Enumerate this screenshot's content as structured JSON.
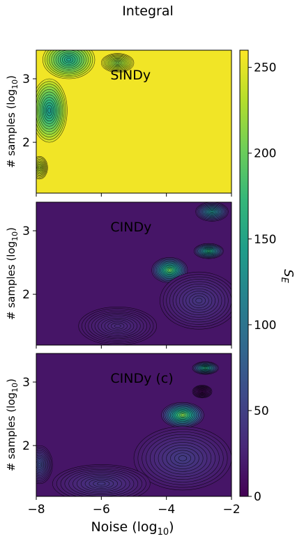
{
  "figure": {
    "suptitle": "Integral"
  },
  "chart_data": [
    {
      "type": "heatmap",
      "panel_label": "SINDy",
      "xlabel": "Noise (log10)",
      "ylabel": "# samples (log10)",
      "xlim": [
        -8,
        -2
      ],
      "ylim": [
        1.2,
        3.45
      ],
      "xticks": [
        -8,
        -6,
        -4,
        -2
      ],
      "yticks": [
        2,
        3
      ],
      "background_value": 255,
      "features": [
        {
          "x": -7.9,
          "y": 1.6,
          "value": 230,
          "sx": 0.25,
          "sy": 0.18
        },
        {
          "x": -7.6,
          "y": 2.5,
          "value": 140,
          "sx": 0.55,
          "sy": 0.5
        },
        {
          "x": -7.0,
          "y": 3.3,
          "value": 150,
          "sx": 0.8,
          "sy": 0.3
        },
        {
          "x": -5.5,
          "y": 3.25,
          "value": 210,
          "sx": 0.5,
          "sy": 0.15
        }
      ]
    },
    {
      "type": "heatmap",
      "panel_label": "CINDy",
      "xlabel": "Noise (log10)",
      "ylabel": "# samples (log10)",
      "xlim": [
        -8,
        -2
      ],
      "ylim": [
        1.2,
        3.45
      ],
      "xticks": [
        -8,
        -6,
        -4,
        -2
      ],
      "yticks": [
        2,
        3
      ],
      "background_value": 15,
      "features": [
        {
          "x": -3.9,
          "y": 2.38,
          "value": 200,
          "sx": 0.55,
          "sy": 0.2
        },
        {
          "x": -2.7,
          "y": 2.68,
          "value": 170,
          "sx": 0.45,
          "sy": 0.12
        },
        {
          "x": -2.6,
          "y": 3.3,
          "value": 130,
          "sx": 0.5,
          "sy": 0.15
        },
        {
          "x": -3.0,
          "y": 1.9,
          "value": 40,
          "sx": 1.2,
          "sy": 0.45
        },
        {
          "x": -5.5,
          "y": 1.5,
          "value": 30,
          "sx": 1.2,
          "sy": 0.3
        }
      ]
    },
    {
      "type": "heatmap",
      "panel_label": "CINDy (c)",
      "xlabel": "Noise (log10)",
      "ylabel": "# samples (log10)",
      "xlim": [
        -8,
        -2
      ],
      "ylim": [
        1.2,
        3.45
      ],
      "xticks": [
        -8,
        -6,
        -4,
        -2
      ],
      "yticks": [
        2,
        3
      ],
      "background_value": 15,
      "features": [
        {
          "x": -3.5,
          "y": 2.48,
          "value": 210,
          "sx": 0.65,
          "sy": 0.2
        },
        {
          "x": -2.8,
          "y": 3.22,
          "value": 170,
          "sx": 0.4,
          "sy": 0.1
        },
        {
          "x": -2.9,
          "y": 2.85,
          "value": 5,
          "sx": 0.3,
          "sy": 0.1
        },
        {
          "x": -7.9,
          "y": 1.7,
          "value": 60,
          "sx": 0.4,
          "sy": 0.3
        },
        {
          "x": -3.5,
          "y": 1.8,
          "value": 45,
          "sx": 1.5,
          "sy": 0.5
        },
        {
          "x": -6.0,
          "y": 1.4,
          "value": 40,
          "sx": 1.5,
          "sy": 0.3
        }
      ]
    }
  ],
  "colorbar": {
    "label": "S_E",
    "range": [
      0,
      260
    ],
    "ticks": [
      "0",
      "50",
      "100",
      "150",
      "200",
      "250"
    ],
    "colormap": "viridis"
  },
  "xaxis": {
    "label_prefix": "Noise (log",
    "label_sub": "10",
    "label_suffix": ")",
    "ticks": [
      "−8",
      "−6",
      "−4",
      "−2"
    ]
  },
  "yaxis": {
    "label_prefix": "# samples (log",
    "label_sub": "10",
    "label_suffix": ")",
    "ticks": [
      "2",
      "3"
    ]
  },
  "colors": {
    "viridis": [
      "#440154",
      "#482878",
      "#3e4989",
      "#31688e",
      "#26828e",
      "#1f9e89",
      "#35b779",
      "#6ece58",
      "#b5de2b",
      "#fde725"
    ]
  }
}
